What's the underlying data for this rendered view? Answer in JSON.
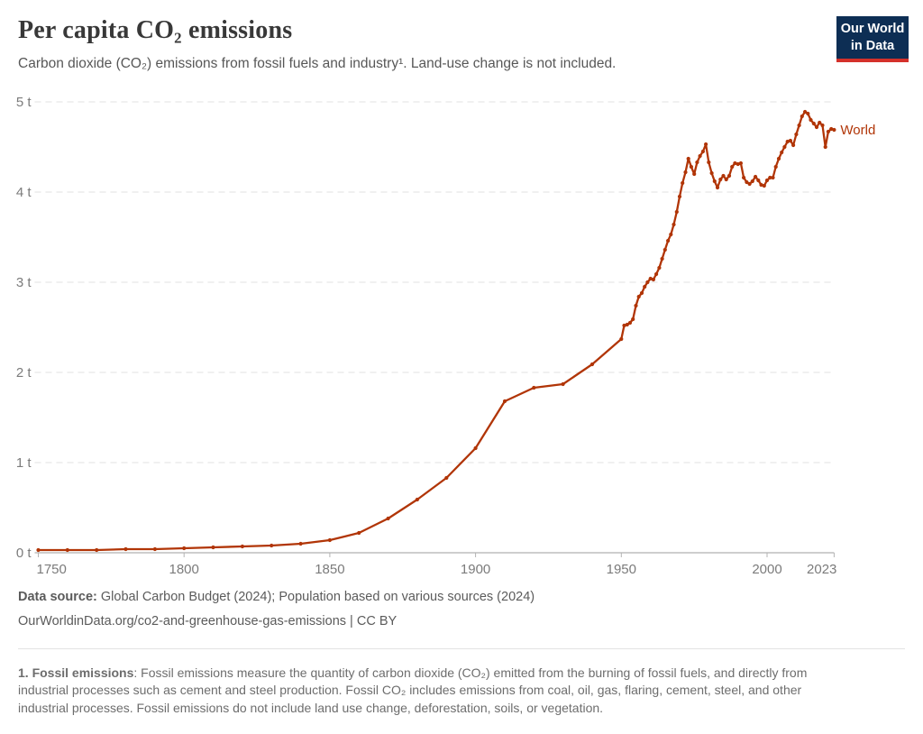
{
  "header": {
    "title": "Per capita CO₂ emissions",
    "subtitle": "Carbon dioxide (CO₂) emissions from fossil fuels and industry¹. Land-use change is not included."
  },
  "logo": {
    "line1": "Our World",
    "line2": "in Data",
    "bg_color": "#0d2e54",
    "accent_color": "#d4312b"
  },
  "chart_data": {
    "type": "line",
    "title": "Per capita CO₂ emissions",
    "xlabel": "",
    "ylabel": "",
    "unit": "t",
    "xlim": [
      1750,
      2023
    ],
    "ylim": [
      0,
      5
    ],
    "xticks": [
      1750,
      1800,
      1850,
      1900,
      1950,
      2000,
      2023
    ],
    "yticks": [
      0,
      1,
      2,
      3,
      4,
      5
    ],
    "grid": "horizontal-dashed",
    "legend": "end-of-line-label",
    "series": [
      {
        "name": "World",
        "color": "#b13507",
        "points": [
          [
            1750,
            0.03
          ],
          [
            1760,
            0.03
          ],
          [
            1770,
            0.03
          ],
          [
            1780,
            0.04
          ],
          [
            1790,
            0.04
          ],
          [
            1800,
            0.05
          ],
          [
            1810,
            0.06
          ],
          [
            1820,
            0.07
          ],
          [
            1830,
            0.08
          ],
          [
            1840,
            0.1
          ],
          [
            1850,
            0.14
          ],
          [
            1860,
            0.22
          ],
          [
            1870,
            0.38
          ],
          [
            1880,
            0.59
          ],
          [
            1890,
            0.83
          ],
          [
            1900,
            1.16
          ],
          [
            1910,
            1.68
          ],
          [
            1920,
            1.83
          ],
          [
            1930,
            1.87
          ],
          [
            1940,
            2.09
          ],
          [
            1950,
            2.37
          ],
          [
            1951,
            2.52
          ],
          [
            1952,
            2.53
          ],
          [
            1953,
            2.55
          ],
          [
            1954,
            2.59
          ],
          [
            1955,
            2.74
          ],
          [
            1956,
            2.84
          ],
          [
            1957,
            2.88
          ],
          [
            1958,
            2.95
          ],
          [
            1959,
            3.0
          ],
          [
            1960,
            3.04
          ],
          [
            1961,
            3.03
          ],
          [
            1962,
            3.09
          ],
          [
            1963,
            3.16
          ],
          [
            1964,
            3.26
          ],
          [
            1965,
            3.36
          ],
          [
            1966,
            3.46
          ],
          [
            1967,
            3.53
          ],
          [
            1968,
            3.64
          ],
          [
            1969,
            3.78
          ],
          [
            1970,
            3.95
          ],
          [
            1971,
            4.1
          ],
          [
            1972,
            4.22
          ],
          [
            1973,
            4.37
          ],
          [
            1974,
            4.28
          ],
          [
            1975,
            4.2
          ],
          [
            1976,
            4.33
          ],
          [
            1977,
            4.4
          ],
          [
            1978,
            4.45
          ],
          [
            1979,
            4.53
          ],
          [
            1980,
            4.33
          ],
          [
            1981,
            4.21
          ],
          [
            1982,
            4.12
          ],
          [
            1983,
            4.05
          ],
          [
            1984,
            4.14
          ],
          [
            1985,
            4.18
          ],
          [
            1986,
            4.14
          ],
          [
            1987,
            4.18
          ],
          [
            1988,
            4.28
          ],
          [
            1989,
            4.32
          ],
          [
            1990,
            4.31
          ],
          [
            1991,
            4.32
          ],
          [
            1992,
            4.16
          ],
          [
            1993,
            4.11
          ],
          [
            1994,
            4.09
          ],
          [
            1995,
            4.12
          ],
          [
            1996,
            4.17
          ],
          [
            1997,
            4.13
          ],
          [
            1998,
            4.08
          ],
          [
            1999,
            4.07
          ],
          [
            2000,
            4.13
          ],
          [
            2001,
            4.16
          ],
          [
            2002,
            4.16
          ],
          [
            2003,
            4.28
          ],
          [
            2004,
            4.37
          ],
          [
            2005,
            4.44
          ],
          [
            2006,
            4.5
          ],
          [
            2007,
            4.56
          ],
          [
            2008,
            4.57
          ],
          [
            2009,
            4.52
          ],
          [
            2010,
            4.64
          ],
          [
            2011,
            4.74
          ],
          [
            2012,
            4.84
          ],
          [
            2013,
            4.89
          ],
          [
            2014,
            4.87
          ],
          [
            2015,
            4.8
          ],
          [
            2016,
            4.76
          ],
          [
            2017,
            4.72
          ],
          [
            2018,
            4.77
          ],
          [
            2019,
            4.74
          ],
          [
            2020,
            4.5
          ],
          [
            2021,
            4.67
          ],
          [
            2022,
            4.7
          ],
          [
            2023,
            4.69
          ]
        ]
      }
    ]
  },
  "footer": {
    "source_label": "Data source:",
    "source_text": "Global Carbon Budget (2024); Population based on various sources (2024)",
    "url_line": "OurWorldinData.org/co2-and-greenhouse-gas-emissions | CC BY"
  },
  "note": {
    "label": "1. Fossil emissions",
    "text": ": Fossil emissions measure the quantity of carbon dioxide (CO₂) emitted from the burning of fossil fuels, and directly from industrial processes such as cement and steel production. Fossil CO₂ includes emissions from coal, oil, gas, flaring, cement, steel, and other industrial processes. Fossil emissions do not include land use change, deforestation, soils, or vegetation."
  }
}
